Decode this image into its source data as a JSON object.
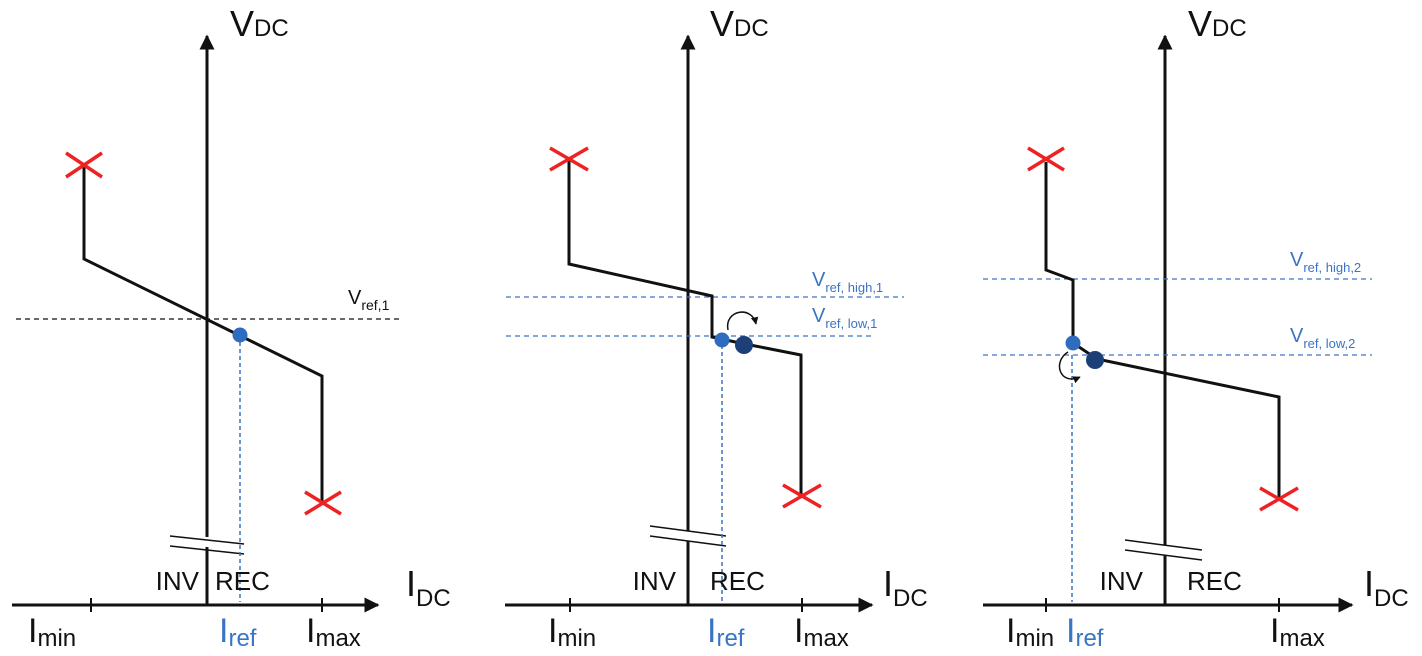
{
  "colors": {
    "curve": "#111111",
    "reference": "#3a74c4",
    "marker": "#ee2222",
    "dot_light": "#2f6cc0",
    "dot_dark": "#1c3f78"
  },
  "panels": [
    {
      "y_axis": {
        "main": "V",
        "sub": "DC"
      },
      "x_axis": {
        "main": "I",
        "sub": "DC"
      },
      "region_left": "INV",
      "region_right": "REC",
      "i_min": {
        "main": "I",
        "sub": "min"
      },
      "i_ref": {
        "main": "I",
        "sub": "ref"
      },
      "i_max": {
        "main": "I",
        "sub": "max"
      },
      "ref_lines": [
        {
          "main": "V",
          "sub": "ref,1"
        }
      ]
    },
    {
      "y_axis": {
        "main": "V",
        "sub": "DC"
      },
      "x_axis": {
        "main": "I",
        "sub": "DC"
      },
      "region_left": "INV",
      "region_right": "REC",
      "i_min": {
        "main": "I",
        "sub": "min"
      },
      "i_ref": {
        "main": "I",
        "sub": "ref"
      },
      "i_max": {
        "main": "I",
        "sub": "max"
      },
      "ref_lines": [
        {
          "main": "V",
          "sub": "ref, high,1"
        },
        {
          "main": "V",
          "sub": "ref, low,1"
        }
      ]
    },
    {
      "y_axis": {
        "main": "V",
        "sub": "DC"
      },
      "x_axis": {
        "main": "I",
        "sub": "DC"
      },
      "region_left": "INV",
      "region_right": "REC",
      "i_min": {
        "main": "I",
        "sub": "min"
      },
      "i_ref": {
        "main": "I",
        "sub": "ref"
      },
      "i_max": {
        "main": "I",
        "sub": "max"
      },
      "ref_lines": [
        {
          "main": "V",
          "sub": "ref, high,2"
        },
        {
          "main": "V",
          "sub": "ref, low,2"
        }
      ]
    }
  ]
}
